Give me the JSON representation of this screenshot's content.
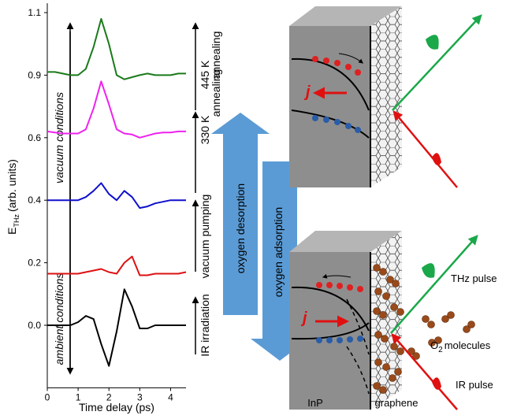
{
  "chart_data": {
    "type": "line",
    "x_label": "Time delay (ps)",
    "y_label": "E",
    "y_label_sub": "THz",
    "y_label_rest": "(arb. units)",
    "x": [
      0,
      0.25,
      0.5,
      0.75,
      1,
      1.25,
      1.5,
      1.75,
      2,
      2.25,
      2.5,
      2.75,
      3,
      3.25,
      3.5,
      3.75,
      4,
      4.25,
      4.5
    ],
    "series": [
      {
        "name": "445 K annealing",
        "color": "#1a7a1a",
        "values": [
          0.91,
          0.91,
          0.905,
          0.9,
          0.9,
          0.92,
          0.99,
          1.08,
          1.0,
          0.9,
          0.88,
          0.89,
          0.9,
          0.905,
          0.9,
          0.9,
          0.9,
          0.905,
          0.905
        ]
      },
      {
        "name": "330 K annealing",
        "color": "#ee22ee",
        "values": [
          0.63,
          0.625,
          0.62,
          0.62,
          0.62,
          0.64,
          0.74,
          0.87,
          0.76,
          0.64,
          0.62,
          0.615,
          0.6,
          0.61,
          0.62,
          0.625,
          0.625,
          0.63,
          0.63
        ]
      },
      {
        "name": "vacuum pumping",
        "color": "#1010cc",
        "values": [
          0.4,
          0.4,
          0.4,
          0.4,
          0.4,
          0.41,
          0.43,
          0.455,
          0.42,
          0.4,
          0.43,
          0.41,
          0.375,
          0.38,
          0.39,
          0.395,
          0.4,
          0.4,
          0.4
        ]
      },
      {
        "name": "IR irradiation",
        "color": "#dd1111",
        "values": [
          0.165,
          0.165,
          0.165,
          0.165,
          0.165,
          0.17,
          0.175,
          0.18,
          0.17,
          0.165,
          0.2,
          0.22,
          0.16,
          0.16,
          0.165,
          0.165,
          0.165,
          0.165,
          0.17
        ]
      },
      {
        "name": "ambient",
        "color": "#000000",
        "values": [
          0,
          0,
          0,
          0,
          0.01,
          0.03,
          0.02,
          -0.06,
          -0.13,
          -0.02,
          0.115,
          0.06,
          -0.01,
          -0.01,
          0,
          0,
          0,
          0,
          0
        ]
      }
    ],
    "xlim": [
      0,
      4.5
    ],
    "xticks": [
      0,
      1,
      2,
      3,
      4
    ],
    "ylim": [
      -0.2,
      1.13
    ],
    "yticks": [
      {
        "value": 0,
        "label": "0.0"
      },
      0.2,
      0.4,
      0.6,
      0.9,
      1.1
    ],
    "annotations": {
      "vacuum": "vacuum conditions",
      "ambient": "ambient conditions",
      "ir": "IR irradiation",
      "pumping": "vacuum pumping",
      "anneal330": "330 K",
      "anneal330b": "annealing",
      "anneal445": "445 K",
      "anneal445b": "annealing"
    }
  },
  "diagram": {
    "desorption": "oxygen desorption",
    "adsorption": "oxygen adsorption",
    "current_top": "j",
    "current_bottom": "j",
    "thz_pulse": "THz pulse",
    "o2_main": "O",
    "o2_sub": "2",
    "o2_rest": "molecules",
    "ir_pulse": "IR pulse",
    "inp": "InP",
    "graphene": "graphene"
  }
}
